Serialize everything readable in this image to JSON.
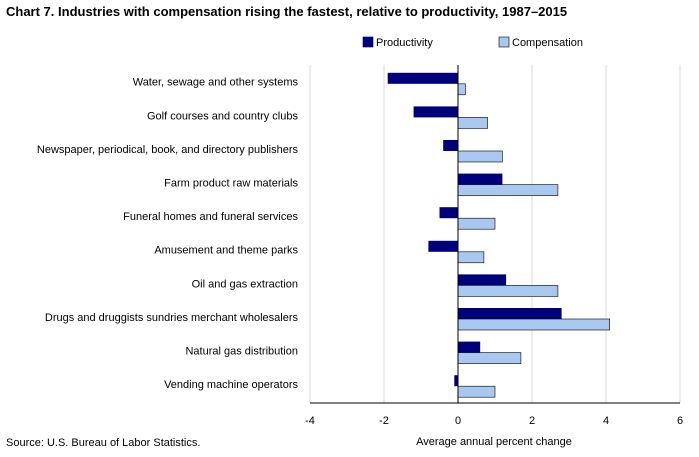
{
  "title": "Chart 7. Industries with compensation rising the fastest, relative to productivity, 1987–2015",
  "source": "Source: U.S. Bureau of Labor Statistics.",
  "colors": {
    "productivity": "#00007a",
    "compensation": "#a8c8f0",
    "grid": "#d9d9d9",
    "axis": "#000000"
  },
  "chart_data": {
    "type": "bar",
    "orientation": "horizontal",
    "title": "Chart 7. Industries with compensation rising the fastest, relative to productivity, 1987–2015",
    "xlabel": "Average annual percent change",
    "ylabel": "",
    "xlim": [
      -4,
      6
    ],
    "xticks": [
      -4,
      -2,
      0,
      2,
      4,
      6
    ],
    "grid": "vertical",
    "legend": "top",
    "categories": [
      "Water, sewage and other systems",
      "Golf courses and country clubs",
      "Newspaper, periodical, book, and directory publishers",
      "Farm product raw materials",
      "Funeral homes and funeral services",
      "Amusement and theme parks",
      "Oil and gas extraction",
      "Drugs and druggists sundries merchant wholesalers",
      "Natural gas distribution",
      "Vending machine operators"
    ],
    "series": [
      {
        "name": "Productivity",
        "values": [
          -1.9,
          -1.2,
          -0.4,
          1.2,
          -0.5,
          -0.8,
          1.3,
          2.8,
          0.6,
          -0.1
        ]
      },
      {
        "name": "Compensation",
        "values": [
          0.2,
          0.8,
          1.2,
          2.7,
          1.0,
          0.7,
          2.7,
          4.1,
          1.7,
          1.0
        ]
      }
    ]
  }
}
